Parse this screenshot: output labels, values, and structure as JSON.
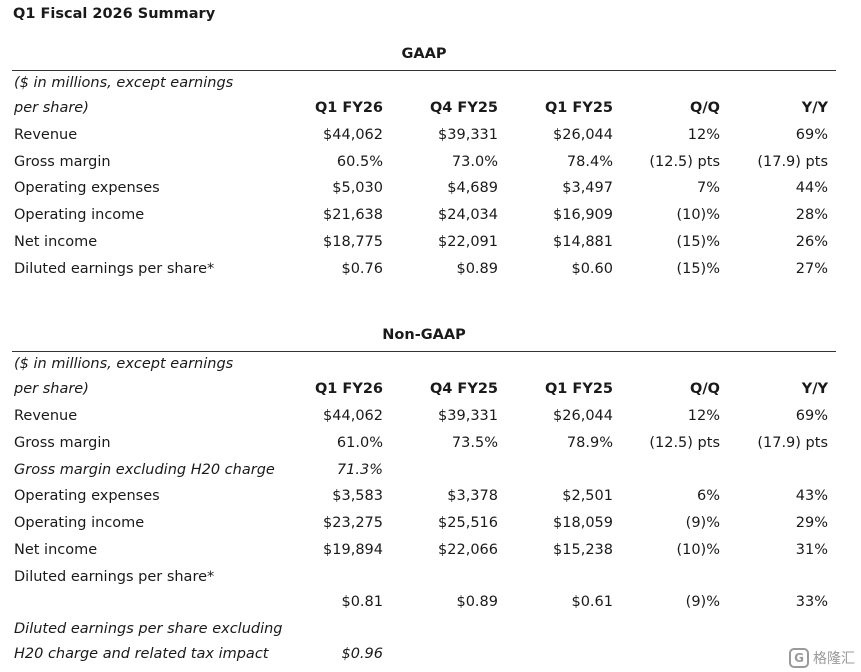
{
  "title": "Q1 Fiscal 2026 Summary",
  "gaap": {
    "section_title": "GAAP",
    "unit_line1": "($ in millions, except earnings",
    "unit_line2": "per share)",
    "headers": [
      "Q1 FY26",
      "Q4 FY25",
      "Q1 FY25",
      "Q/Q",
      "Y/Y"
    ],
    "rows": [
      {
        "label": "Revenue",
        "values": [
          "$44,062",
          "$39,331",
          "$26,044",
          "12%",
          "69%"
        ]
      },
      {
        "label": "Gross margin",
        "values": [
          "60.5%",
          "73.0%",
          "78.4%",
          "(12.5) pts",
          "(17.9) pts"
        ]
      },
      {
        "label": "Operating expenses",
        "values": [
          "$5,030",
          "$4,689",
          "$3,497",
          "7%",
          "44%"
        ]
      },
      {
        "label": "Operating income",
        "values": [
          "$21,638",
          "$24,034",
          "$16,909",
          "(10)%",
          "28%"
        ]
      },
      {
        "label": "Net income",
        "values": [
          "$18,775",
          "$22,091",
          "$14,881",
          "(15)%",
          "26%"
        ]
      },
      {
        "label": "Diluted earnings per share*",
        "values": [
          "$0.76",
          "$0.89",
          "$0.60",
          "(15)%",
          "27%"
        ]
      }
    ]
  },
  "nongaap": {
    "section_title": "Non-GAAP",
    "unit_line1": "($ in millions, except earnings",
    "unit_line2": "per share)",
    "headers": [
      "Q1 FY26",
      "Q4 FY25",
      "Q1 FY25",
      "Q/Q",
      "Y/Y"
    ],
    "rows": [
      {
        "label": "Revenue",
        "values": [
          "$44,062",
          "$39,331",
          "$26,044",
          "12%",
          "69%"
        ]
      },
      {
        "label": "Gross margin",
        "values": [
          "61.0%",
          "73.5%",
          "78.9%",
          "(12.5) pts",
          "(17.9) pts"
        ]
      },
      {
        "label": "Gross margin excluding H20 charge",
        "values": [
          "71.3%",
          "",
          "",
          "",
          ""
        ]
      },
      {
        "label": "Operating expenses",
        "values": [
          "$3,583",
          "$3,378",
          "$2,501",
          "6%",
          "43%"
        ]
      },
      {
        "label": "Operating income",
        "values": [
          "$23,275",
          "$25,516",
          "$18,059",
          "(9)%",
          "29%"
        ]
      },
      {
        "label": "Net income",
        "values": [
          "$19,894",
          "$22,066",
          "$15,238",
          "(10)%",
          "31%"
        ]
      },
      {
        "label": "Diluted earnings per share*",
        "values": [
          "",
          "",
          "",
          "",
          ""
        ]
      },
      {
        "label": "",
        "values": [
          "$0.81",
          "$0.89",
          "$0.61",
          "(9)%",
          "33%"
        ]
      },
      {
        "label": "Diluted earnings per share excluding",
        "values": [
          "",
          "",
          "",
          "",
          ""
        ]
      },
      {
        "label": "H20 charge and related tax impact",
        "values": [
          "$0.96",
          "",
          "",
          "",
          ""
        ]
      }
    ]
  },
  "watermark": {
    "logo_glyph": "G",
    "text": "格隆汇"
  }
}
